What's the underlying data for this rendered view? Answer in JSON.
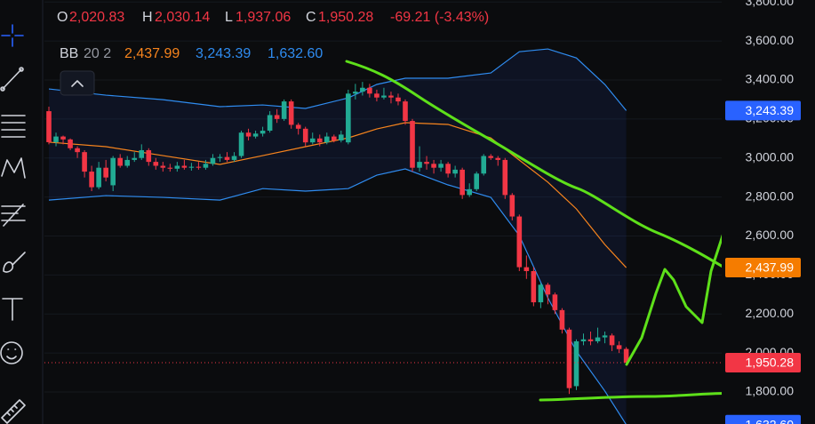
{
  "chart_data": {
    "type": "candlestick",
    "header": {
      "ohlc": [
        {
          "key": "O",
          "value": "2,020.83"
        },
        {
          "key": "H",
          "value": "2,030.14"
        },
        {
          "key": "L",
          "value": "1,937.06"
        },
        {
          "key": "C",
          "value": "1,950.28"
        }
      ],
      "change": "-69.21 (-3.43%)"
    },
    "indicator": {
      "name": "BB",
      "params": "20 2",
      "values": [
        "2,437.99",
        "3,243.39",
        "1,632.60"
      ],
      "colors": [
        "#f7841d",
        "#2f8cf0",
        "#2f8cf0"
      ]
    },
    "colors": {
      "up": "#22ab94",
      "down": "#f23645"
    },
    "open": [
      3240,
      3081,
      3110,
      3095,
      3050,
      3030,
      2930,
      2850,
      2950,
      2860,
      3000,
      2960,
      2990,
      3000,
      3040,
      2980,
      2960,
      2950,
      2945,
      2960,
      2950,
      2955,
      2950,
      2970,
      3000,
      3005,
      2990,
      3010,
      3130,
      3110,
      3125,
      3140,
      3220,
      3200,
      3290,
      3170,
      3150,
      3080,
      3100,
      3080,
      3110,
      3090,
      3080,
      3330,
      3340,
      3360,
      3330,
      3310,
      3320,
      3310,
      3290,
      3190,
      2950,
      2980,
      2970,
      2950,
      2970,
      2920,
      2940,
      2810,
      2840,
      2920,
      3010,
      3000,
      2990,
      2810,
      2700,
      2440,
      2420,
      2260,
      2350,
      2300,
      2220,
      2120,
      1830,
      2060,
      2070,
      2060,
      2080,
      2090,
      2040,
      2020.83
    ],
    "high": [
      3263,
      3130,
      3115,
      3100,
      3060,
      3040,
      2960,
      2980,
      2990,
      3010,
      3020,
      3010,
      3030,
      3070,
      3050,
      3000,
      2980,
      2970,
      2980,
      2990,
      2975,
      2980,
      2990,
      3020,
      3020,
      3030,
      3030,
      3140,
      3150,
      3140,
      3160,
      3240,
      3250,
      3300,
      3300,
      3180,
      3160,
      3130,
      3120,
      3130,
      3120,
      3140,
      3350,
      3380,
      3390,
      3380,
      3350,
      3360,
      3340,
      3330,
      3300,
      3200,
      3060,
      3010,
      2990,
      2990,
      2980,
      2960,
      2950,
      2870,
      2930,
      3020,
      3020,
      3010,
      3000,
      2820,
      2710,
      2500,
      2440,
      2360,
      2360,
      2310,
      2230,
      2130,
      2070,
      2100,
      2110,
      2130,
      2110,
      2100,
      2060,
      2030.14
    ],
    "low": [
      3070,
      3060,
      3070,
      3040,
      3000,
      2900,
      2830,
      2840,
      2880,
      2830,
      2950,
      2950,
      2980,
      2990,
      2960,
      2940,
      2930,
      2930,
      2930,
      2940,
      2935,
      2940,
      2940,
      2960,
      2980,
      2980,
      2980,
      3000,
      3090,
      3100,
      3110,
      3130,
      3180,
      3190,
      3150,
      3120,
      3060,
      3070,
      3060,
      3070,
      3080,
      3080,
      3070,
      3300,
      3320,
      3310,
      3290,
      3300,
      3280,
      3270,
      3170,
      2930,
      2930,
      2940,
      2920,
      2930,
      2900,
      2900,
      2790,
      2800,
      2830,
      2910,
      2990,
      2960,
      2790,
      2680,
      2420,
      2380,
      2240,
      2230,
      2250,
      2200,
      2100,
      1790,
      1810,
      2040,
      2040,
      2050,
      2050,
      2010,
      2000,
      1937.06
    ],
    "close": [
      3081,
      3110,
      3095,
      3050,
      3030,
      2930,
      2850,
      2950,
      2900,
      3000,
      2960,
      2990,
      3000,
      3040,
      2980,
      2960,
      2950,
      2945,
      2960,
      2950,
      2955,
      2950,
      2970,
      3000,
      3005,
      2990,
      3010,
      3130,
      3110,
      3125,
      3140,
      3220,
      3200,
      3290,
      3170,
      3150,
      3080,
      3100,
      3080,
      3110,
      3090,
      3120,
      3330,
      3340,
      3360,
      3330,
      3310,
      3320,
      3310,
      3290,
      3190,
      2950,
      2980,
      2970,
      2950,
      2970,
      2920,
      2940,
      2810,
      2840,
      2920,
      3010,
      3000,
      2990,
      2810,
      2700,
      2440,
      2420,
      2260,
      2350,
      2300,
      2220,
      2120,
      1820,
      2060,
      2070,
      2060,
      2080,
      2090,
      2040,
      2020,
      1950.28
    ],
    "bands": {
      "x": [
        0,
        8,
        16,
        24,
        30,
        36,
        42,
        46,
        50,
        56,
        62,
        66,
        70,
        74,
        78,
        81
      ],
      "fill": "#2962ff",
      "upper": {
        "color": "#2f8cf0",
        "values": [
          3354,
          3322,
          3299,
          3263,
          3272,
          3254,
          3308,
          3377,
          3409,
          3409,
          3436,
          3545,
          3559,
          3513,
          3377,
          3243.39
        ]
      },
      "middle": {
        "color": "#f7841d",
        "values": [
          3081,
          3058,
          3012,
          2967,
          3012,
          3058,
          3103,
          3149,
          3181,
          3172,
          3103,
          2989,
          2876,
          2739,
          2556,
          2437.99
        ]
      },
      "lower": {
        "color": "#2f8cf0",
        "values": [
          2784,
          2807,
          2798,
          2784,
          2843,
          2830,
          2843,
          2912,
          2944,
          2862,
          2798,
          2602,
          2283,
          2010,
          1805,
          1632.6
        ]
      }
    },
    "ylim": [
      1636,
      3810
    ],
    "yticks": [
      {
        "value": 1800,
        "label": "1,800.00"
      },
      {
        "value": 2000,
        "label": "2,000.00"
      },
      {
        "value": 2200,
        "label": "2,200.00"
      },
      {
        "value": 2400,
        "label": "2,400.00"
      },
      {
        "value": 2600,
        "label": "2,600.00"
      },
      {
        "value": 2800,
        "label": "2,800.00"
      },
      {
        "value": 3000,
        "label": "3,000.00"
      },
      {
        "value": 3200,
        "label": "3,200.00"
      },
      {
        "value": 3400,
        "label": "3,400.00"
      },
      {
        "value": 3600,
        "label": "3,600.00"
      },
      {
        "value": 3800,
        "label": "3,800.00"
      }
    ],
    "grid": true,
    "price_tags": [
      {
        "value": 3243.39,
        "label": "3,243.39",
        "color": "#2962ff"
      },
      {
        "value": 2437.99,
        "label": "2,437.99",
        "color": "#f57c00"
      },
      {
        "value": 1950.28,
        "label": "1,950.28",
        "color": "#f23645"
      },
      {
        "value": 1632.6,
        "label": "1,632.60",
        "color": "#2962ff"
      }
    ]
  }
}
